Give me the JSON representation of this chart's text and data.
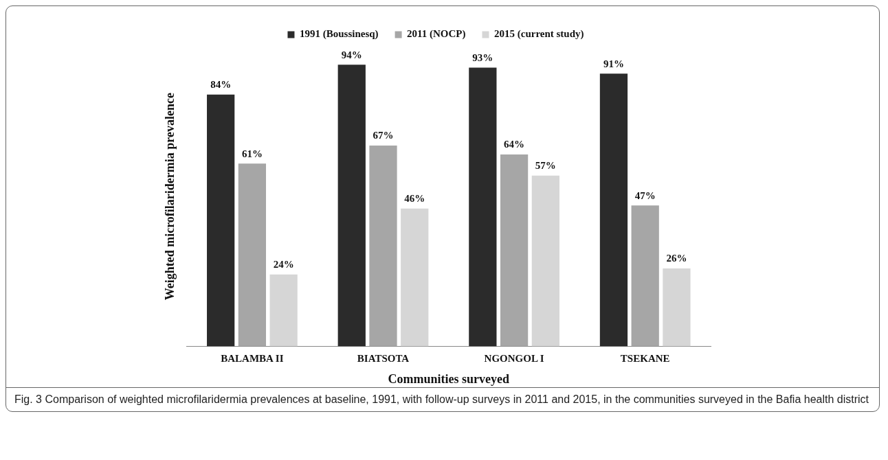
{
  "chart_data": {
    "type": "bar",
    "xlabel": "Communities surveyed",
    "ylabel": "Weighted microfilaridermia prevalence",
    "categories": [
      "BALAMBA II",
      "BIATSOTA",
      "NGONGOL I",
      "TSEKANE"
    ],
    "series": [
      {
        "name": "1991 (Boussinesq)",
        "color": "#2b2b2b",
        "values": [
          84,
          94,
          93,
          91
        ],
        "value_labels": [
          "84%",
          "94%",
          "93%",
          "91%"
        ]
      },
      {
        "name": "2011 (NOCP)",
        "color": "#a6a6a6",
        "values": [
          61,
          67,
          64,
          47
        ],
        "value_labels": [
          "61%",
          "67%",
          "64%",
          "47%"
        ]
      },
      {
        "name": "2015 (current study)",
        "color": "#d6d6d6",
        "values": [
          24,
          46,
          57,
          26
        ],
        "value_labels": [
          "24%",
          "46%",
          "57%",
          "26%"
        ]
      }
    ],
    "tick_labels": "x",
    "grid": false,
    "legend": "top",
    "annotations": [
      "Fig. 3 Comparison of weighted microfilaridermia prevalences at baseline, 1991, with follow-up surveys in 2011 and 2015, in the communities surveyed in the Bafia health district"
    ]
  }
}
